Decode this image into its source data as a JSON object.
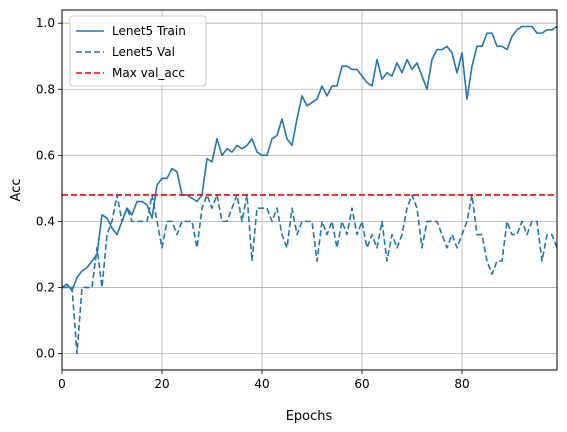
{
  "chart_data": {
    "type": "line",
    "title": "",
    "xlabel": "Epochs",
    "ylabel": "Acc",
    "xlim": [
      0,
      99
    ],
    "ylim": [
      -0.05,
      1.04
    ],
    "xticks": [
      0,
      20,
      40,
      60,
      80
    ],
    "yticks": [
      0.0,
      0.2,
      0.4,
      0.6,
      0.8,
      1.0
    ],
    "xtick_labels": [
      "0",
      "20",
      "40",
      "60",
      "80"
    ],
    "ytick_labels": [
      "0.0",
      "0.2",
      "0.4",
      "0.6",
      "0.8",
      "1.0"
    ],
    "grid": true,
    "legend_position": "top-left",
    "series": [
      {
        "name": "Lenet5 Train",
        "style": "solid",
        "color": "#1f77b4",
        "x": [
          0,
          1,
          2,
          3,
          4,
          5,
          6,
          7,
          8,
          9,
          10,
          11,
          12,
          13,
          14,
          15,
          16,
          17,
          18,
          19,
          20,
          21,
          22,
          23,
          24,
          25,
          26,
          27,
          28,
          29,
          30,
          31,
          32,
          33,
          34,
          35,
          36,
          37,
          38,
          39,
          40,
          41,
          42,
          43,
          44,
          45,
          46,
          47,
          48,
          49,
          50,
          51,
          52,
          53,
          54,
          55,
          56,
          57,
          58,
          59,
          60,
          61,
          62,
          63,
          64,
          65,
          66,
          67,
          68,
          69,
          70,
          71,
          72,
          73,
          74,
          75,
          76,
          77,
          78,
          79,
          80,
          81,
          82,
          83,
          84,
          85,
          86,
          87,
          88,
          89,
          90,
          91,
          92,
          93,
          94,
          95,
          96,
          97,
          98,
          99
        ],
        "values": [
          0.2,
          0.21,
          0.19,
          0.23,
          0.25,
          0.26,
          0.28,
          0.3,
          0.42,
          0.41,
          0.38,
          0.36,
          0.4,
          0.44,
          0.42,
          0.46,
          0.46,
          0.45,
          0.41,
          0.51,
          0.53,
          0.53,
          0.56,
          0.55,
          0.48,
          0.48,
          0.47,
          0.46,
          0.48,
          0.59,
          0.58,
          0.65,
          0.6,
          0.62,
          0.61,
          0.63,
          0.62,
          0.63,
          0.65,
          0.61,
          0.6,
          0.6,
          0.65,
          0.66,
          0.71,
          0.65,
          0.63,
          0.71,
          0.78,
          0.75,
          0.76,
          0.77,
          0.81,
          0.78,
          0.81,
          0.81,
          0.87,
          0.87,
          0.86,
          0.86,
          0.84,
          0.82,
          0.81,
          0.89,
          0.83,
          0.85,
          0.84,
          0.88,
          0.85,
          0.89,
          0.86,
          0.88,
          0.84,
          0.8,
          0.89,
          0.92,
          0.92,
          0.93,
          0.91,
          0.85,
          0.91,
          0.77,
          0.87,
          0.93,
          0.93,
          0.97,
          0.97,
          0.93,
          0.93,
          0.92,
          0.96,
          0.98,
          0.99,
          0.99,
          0.99,
          0.97,
          0.97,
          0.98,
          0.98,
          0.99
        ]
      },
      {
        "name": "Lenet5 Val",
        "style": "dashed",
        "color": "#1f77b4",
        "x": [
          0,
          1,
          2,
          3,
          4,
          5,
          6,
          7,
          8,
          9,
          10,
          11,
          12,
          13,
          14,
          15,
          16,
          17,
          18,
          19,
          20,
          21,
          22,
          23,
          24,
          25,
          26,
          27,
          28,
          29,
          30,
          31,
          32,
          33,
          34,
          35,
          36,
          37,
          38,
          39,
          40,
          41,
          42,
          43,
          44,
          45,
          46,
          47,
          48,
          49,
          50,
          51,
          52,
          53,
          54,
          55,
          56,
          57,
          58,
          59,
          60,
          61,
          62,
          63,
          64,
          65,
          66,
          67,
          68,
          69,
          70,
          71,
          72,
          73,
          74,
          75,
          76,
          77,
          78,
          79,
          80,
          81,
          82,
          83,
          84,
          85,
          86,
          87,
          88,
          89,
          90,
          91,
          92,
          93,
          94,
          95,
          96,
          97,
          98,
          99
        ],
        "values": [
          0.2,
          0.2,
          0.2,
          0.0,
          0.2,
          0.2,
          0.2,
          0.32,
          0.2,
          0.36,
          0.4,
          0.48,
          0.4,
          0.44,
          0.4,
          0.4,
          0.4,
          0.4,
          0.48,
          0.4,
          0.32,
          0.4,
          0.4,
          0.36,
          0.4,
          0.4,
          0.4,
          0.32,
          0.44,
          0.48,
          0.44,
          0.48,
          0.4,
          0.4,
          0.44,
          0.48,
          0.4,
          0.48,
          0.28,
          0.44,
          0.44,
          0.44,
          0.4,
          0.44,
          0.36,
          0.32,
          0.44,
          0.36,
          0.4,
          0.4,
          0.4,
          0.28,
          0.4,
          0.36,
          0.4,
          0.32,
          0.4,
          0.36,
          0.44,
          0.36,
          0.4,
          0.32,
          0.36,
          0.32,
          0.4,
          0.28,
          0.36,
          0.32,
          0.36,
          0.44,
          0.48,
          0.44,
          0.32,
          0.4,
          0.4,
          0.4,
          0.36,
          0.32,
          0.36,
          0.32,
          0.36,
          0.4,
          0.48,
          0.36,
          0.36,
          0.28,
          0.24,
          0.28,
          0.28,
          0.4,
          0.36,
          0.36,
          0.4,
          0.36,
          0.4,
          0.4,
          0.28,
          0.36,
          0.36,
          0.32
        ]
      },
      {
        "name": "Max val_acc",
        "style": "dashed",
        "color": "#ff0000",
        "x": [
          0,
          99
        ],
        "values": [
          0.48,
          0.48
        ]
      }
    ]
  }
}
